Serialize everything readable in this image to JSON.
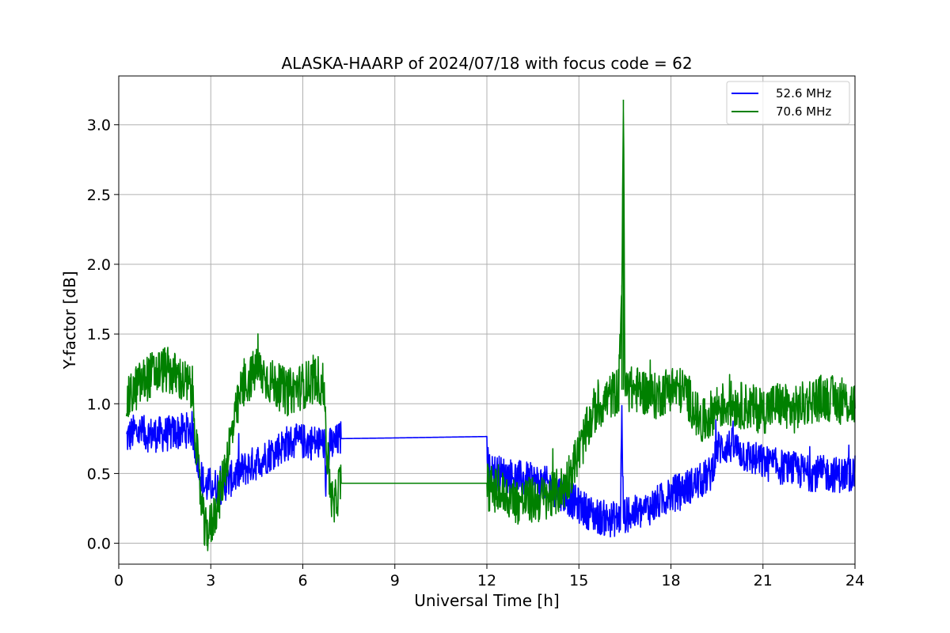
{
  "chart_data": {
    "type": "line",
    "title": "ALASKA-HAARP of 2024/07/18 with focus code = 62",
    "xlabel": "Universal Time [h]",
    "ylabel": "Y-factor [dB]",
    "xlim": [
      0,
      24
    ],
    "ylim": [
      -0.15,
      3.35
    ],
    "xticks": [
      0,
      3,
      6,
      9,
      12,
      15,
      18,
      21,
      24
    ],
    "xtick_labels": [
      "0",
      "3",
      "6",
      "9",
      "12",
      "15",
      "18",
      "21",
      "24"
    ],
    "yticks": [
      0.0,
      0.5,
      1.0,
      1.5,
      2.0,
      2.5,
      3.0
    ],
    "ytick_labels": [
      "0.0",
      "0.5",
      "1.0",
      "1.5",
      "2.0",
      "2.5",
      "3.0"
    ],
    "grid": true,
    "legend": "top-right",
    "series": [
      {
        "name": "52.6 MHz",
        "color": "#0000ff",
        "points": [
          [
            0.25,
            0.75
          ],
          [
            0.5,
            0.8
          ],
          [
            1.0,
            0.78
          ],
          [
            1.5,
            0.78
          ],
          [
            2.0,
            0.8
          ],
          [
            2.4,
            0.82
          ],
          [
            2.6,
            0.55
          ],
          [
            2.8,
            0.4
          ],
          [
            3.0,
            0.42
          ],
          [
            3.3,
            0.4
          ],
          [
            3.6,
            0.45
          ],
          [
            4.0,
            0.52
          ],
          [
            4.5,
            0.58
          ],
          [
            5.0,
            0.65
          ],
          [
            5.5,
            0.72
          ],
          [
            6.0,
            0.73
          ],
          [
            6.5,
            0.72
          ],
          [
            6.7,
            0.72
          ],
          [
            6.75,
            0.45
          ],
          [
            6.9,
            0.72
          ],
          [
            7.0,
            0.7
          ],
          [
            7.2,
            0.75
          ],
          [
            9.0,
            0.755
          ],
          [
            12.0,
            0.765
          ],
          [
            12.05,
            0.52
          ],
          [
            13.0,
            0.47
          ],
          [
            14.0,
            0.42
          ],
          [
            14.5,
            0.35
          ],
          [
            15.0,
            0.27
          ],
          [
            15.5,
            0.2
          ],
          [
            16.0,
            0.17
          ],
          [
            16.35,
            0.18
          ],
          [
            16.4,
            0.9
          ],
          [
            16.45,
            0.2
          ],
          [
            17.0,
            0.22
          ],
          [
            17.5,
            0.28
          ],
          [
            18.0,
            0.35
          ],
          [
            18.5,
            0.4
          ],
          [
            19.0,
            0.45
          ],
          [
            19.3,
            0.5
          ],
          [
            19.5,
            0.68
          ],
          [
            20.0,
            0.7
          ],
          [
            20.5,
            0.62
          ],
          [
            21.0,
            0.58
          ],
          [
            21.5,
            0.55
          ],
          [
            22.0,
            0.53
          ],
          [
            22.5,
            0.5
          ],
          [
            23.0,
            0.5
          ],
          [
            23.5,
            0.49
          ],
          [
            24.0,
            0.5
          ]
        ]
      },
      {
        "name": "70.6 MHz",
        "color": "#008000",
        "points": [
          [
            0.25,
            1.0
          ],
          [
            0.5,
            1.1
          ],
          [
            1.0,
            1.2
          ],
          [
            1.5,
            1.25
          ],
          [
            2.0,
            1.18
          ],
          [
            2.4,
            1.1
          ],
          [
            2.6,
            0.5
          ],
          [
            2.8,
            0.08
          ],
          [
            3.0,
            0.12
          ],
          [
            3.3,
            0.35
          ],
          [
            3.6,
            0.7
          ],
          [
            4.0,
            1.1
          ],
          [
            4.5,
            1.25
          ],
          [
            5.0,
            1.15
          ],
          [
            5.5,
            1.08
          ],
          [
            6.0,
            1.13
          ],
          [
            6.5,
            1.18
          ],
          [
            6.7,
            1.1
          ],
          [
            6.8,
            0.6
          ],
          [
            7.0,
            0.22
          ],
          [
            7.2,
            0.43
          ],
          [
            9.0,
            0.43
          ],
          [
            12.0,
            0.43
          ],
          [
            12.05,
            0.4
          ],
          [
            13.0,
            0.3
          ],
          [
            14.0,
            0.32
          ],
          [
            14.5,
            0.4
          ],
          [
            15.0,
            0.65
          ],
          [
            15.5,
            0.95
          ],
          [
            16.0,
            1.05
          ],
          [
            16.3,
            1.1
          ],
          [
            16.4,
            1.85
          ],
          [
            16.45,
            3.18
          ],
          [
            16.5,
            1.1
          ],
          [
            17.0,
            1.1
          ],
          [
            17.5,
            1.05
          ],
          [
            18.0,
            1.12
          ],
          [
            18.5,
            1.08
          ],
          [
            19.0,
            0.85
          ],
          [
            19.5,
            0.98
          ],
          [
            20.0,
            1.0
          ],
          [
            20.5,
            0.98
          ],
          [
            21.0,
            0.95
          ],
          [
            21.5,
            1.0
          ],
          [
            22.0,
            0.95
          ],
          [
            22.5,
            1.02
          ],
          [
            23.0,
            1.05
          ],
          [
            23.5,
            1.02
          ],
          [
            24.0,
            1.0
          ]
        ]
      }
    ]
  }
}
